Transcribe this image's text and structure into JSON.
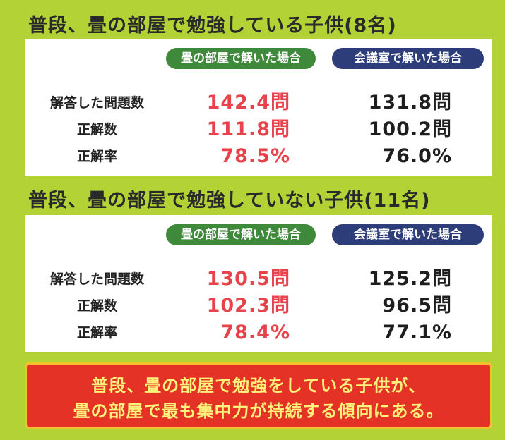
{
  "sections": [
    {
      "title": "普段、畳の部屋で勉強している子供(8名)",
      "columns": [
        "畳の部屋で解いた場合",
        "会議室で解いた場合"
      ],
      "rows": [
        {
          "label": "解答した問題数",
          "values": [
            "142.4問",
            "131.8問"
          ]
        },
        {
          "label": "正解数",
          "values": [
            "111.8問",
            "100.2問"
          ]
        },
        {
          "label": "正解率",
          "values": [
            "78.5%",
            "76.0%"
          ]
        }
      ]
    },
    {
      "title": "普段、畳の部屋で勉強していない子供(11名)",
      "columns": [
        "畳の部屋で解いた場合",
        "会議室で解いた場合"
      ],
      "rows": [
        {
          "label": "解答した問題数",
          "values": [
            "130.5問",
            "125.2問"
          ]
        },
        {
          "label": "正解数",
          "values": [
            "102.3問",
            "96.5問"
          ]
        },
        {
          "label": "正解率",
          "values": [
            "78.4%",
            "77.1%"
          ]
        }
      ]
    }
  ],
  "conclusion": [
    "普段、畳の部屋で勉強をしている子供が、",
    "畳の部屋で最も集中力が持続する傾向にある。"
  ]
}
